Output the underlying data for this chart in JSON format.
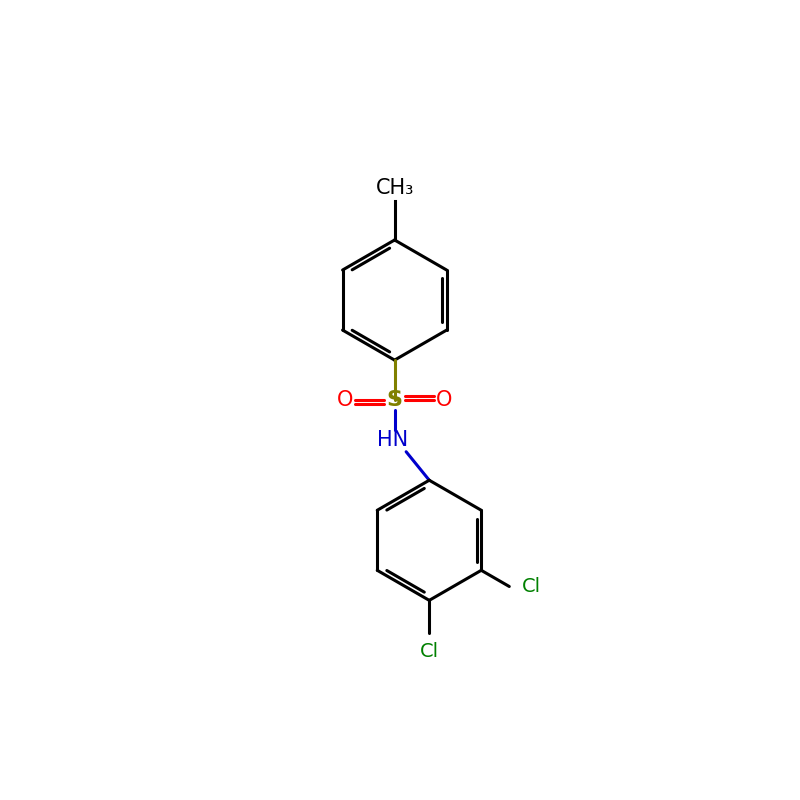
{
  "background_color": "#ffffff",
  "bond_color": "#000000",
  "S_color": "#808000",
  "O_color": "#ff0000",
  "N_color": "#0000cc",
  "Cl_color": "#008000",
  "CH3_label": "CH₃",
  "S_label": "S",
  "O_label": "O",
  "HN_label": "HN",
  "Cl_label": "Cl",
  "bond_width": 2.2,
  "fig_width": 8.0,
  "fig_height": 8.0,
  "dpi": 100
}
